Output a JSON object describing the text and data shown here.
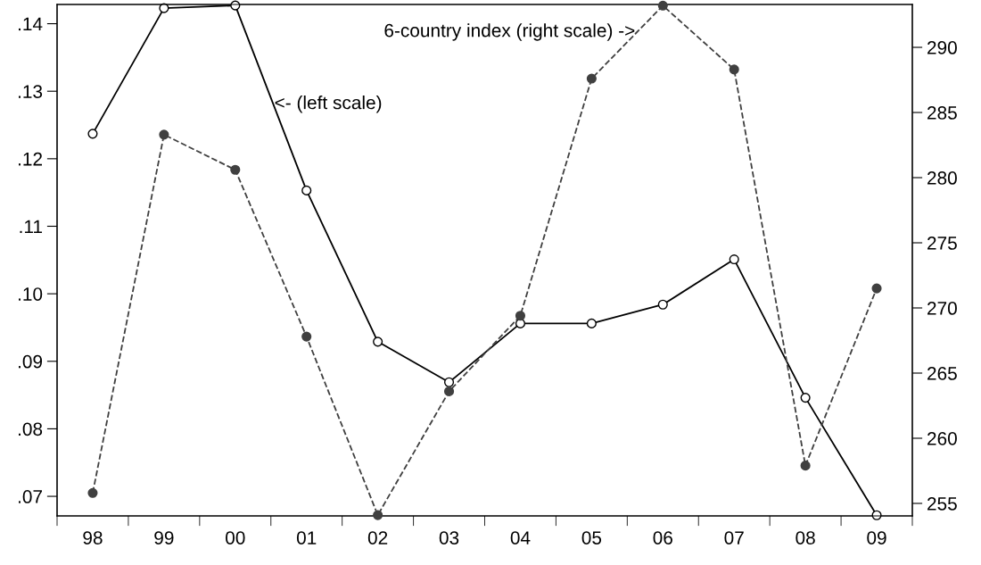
{
  "chart_data": {
    "type": "line",
    "categories": [
      "98",
      "99",
      "00",
      "01",
      "02",
      "03",
      "04",
      "05",
      "06",
      "07",
      "08",
      "09"
    ],
    "series": [
      {
        "color": "#000000",
        "line_style": "solid",
        "marker": "circle",
        "values": [
          0.1237,
          0.1423,
          0.1427,
          0.1153,
          0.0929,
          0.0869,
          0.0956,
          0.0956,
          0.0984,
          0.1051,
          0.0846,
          0.0672
        ]
      },
      {
        "color": "#404040",
        "line_style": "dashed",
        "marker": "circle",
        "axis": "y2",
        "values": [
          255.8,
          283.3,
          280.6,
          267.8,
          254.1,
          263.6,
          269.4,
          287.6,
          293.2,
          288.3,
          257.9,
          271.5
        ]
      }
    ],
    "ylim": [
      0.0671,
      0.14285
    ],
    "yticks": [
      {
        "value": 0.07,
        "label": ".07"
      },
      {
        "value": 0.08,
        "label": ".08"
      },
      {
        "value": 0.09,
        "label": ".09"
      },
      {
        "value": 0.1,
        "label": ".10"
      },
      {
        "value": 0.11,
        "label": ".11"
      },
      {
        "value": 0.12,
        "label": ".12"
      },
      {
        "value": 0.13,
        "label": ".13"
      },
      {
        "value": 0.14,
        "label": ".14"
      }
    ],
    "y2lim": [
      254.04,
      293.29
    ],
    "y2ticks": [
      255,
      260,
      265,
      270,
      275,
      280,
      285,
      290
    ],
    "annotations": [
      "6-country index (right scale) ->",
      "<- (left scale)"
    ],
    "grid": false,
    "legend": false
  }
}
